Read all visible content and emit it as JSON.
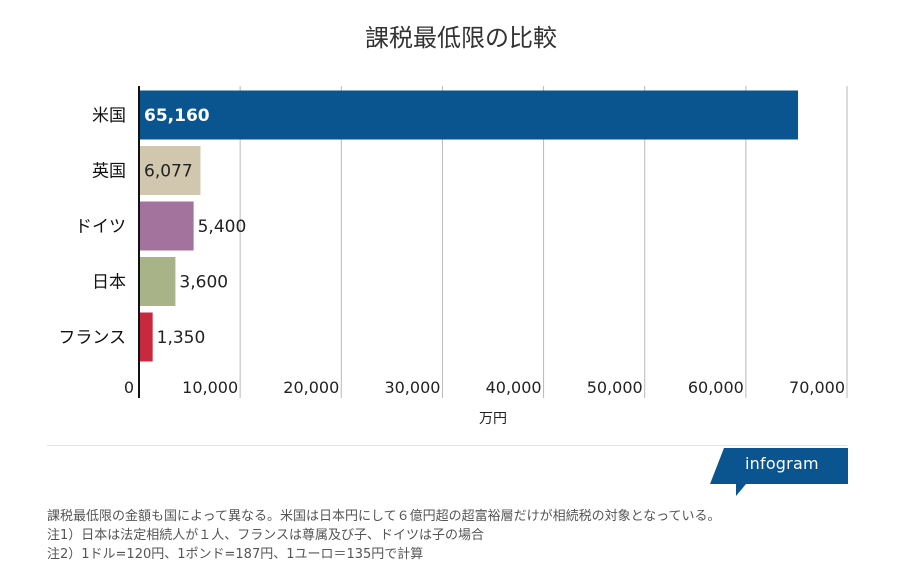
{
  "title": "課税最低限の比較",
  "chart_data": {
    "type": "bar",
    "orientation": "horizontal",
    "categories": [
      "米国",
      "英国",
      "ドイツ",
      "日本",
      "フランス"
    ],
    "values": [
      65160,
      6077,
      5400,
      3600,
      1350
    ],
    "value_labels": [
      "65,160",
      "6,077",
      "5,400",
      "3,600",
      "1,350"
    ],
    "colors": [
      "#0a5490",
      "#d1c7ae",
      "#a4739d",
      "#a8b487",
      "#c9293e"
    ],
    "xlim": [
      0,
      70000
    ],
    "xticks": [
      0,
      10000,
      20000,
      30000,
      40000,
      50000,
      60000,
      70000
    ],
    "xtick_labels": [
      "0",
      "10,000",
      "20,000",
      "30,000",
      "40,000",
      "50,000",
      "60,000",
      "70,000"
    ],
    "xlabel": "万円",
    "ylabel": "",
    "grid": true
  },
  "brand": {
    "label": "infogram",
    "color": "#0a5490"
  },
  "notes": [
    "課税最低限の金額も国によって異なる。米国は日本円にして６億円超の超富裕層だけが相続税の対象となっている。",
    "注1）日本は法定相続人が１人、フランスは尊属及び子、ドイツは子の場合",
    "注2）1ドル=120円、1ポンド=187円、1ユーロ＝135円で計算"
  ]
}
